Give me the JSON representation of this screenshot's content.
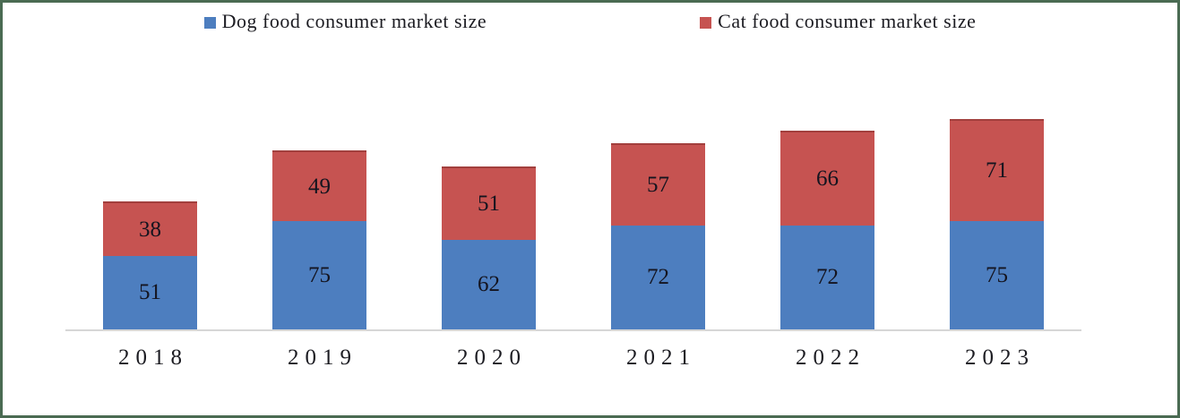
{
  "chart_data": {
    "type": "bar",
    "stacked": true,
    "title": "",
    "xlabel": "",
    "ylabel": "",
    "grid": false,
    "legend_position": "top",
    "ylim": [
      0,
      150
    ],
    "categories": [
      "2018",
      "2019",
      "2020",
      "2021",
      "2022",
      "2023"
    ],
    "series": [
      {
        "name": "Dog food consumer market size",
        "color": "#4d7ebf",
        "values": [
          51,
          75,
          62,
          72,
          72,
          75
        ]
      },
      {
        "name": "Cat food consumer market size",
        "color": "#c65351",
        "values": [
          38,
          49,
          51,
          57,
          66,
          71
        ]
      }
    ]
  },
  "colors": {
    "frame_border": "#4a6b52",
    "baseline": "#d6d6d6",
    "label_text": "#14141f"
  }
}
